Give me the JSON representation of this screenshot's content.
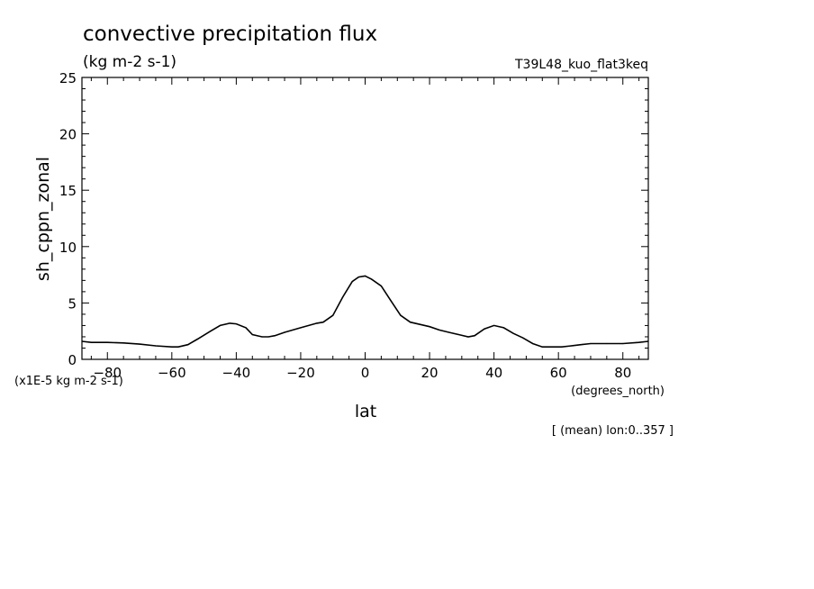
{
  "chart_data": {
    "type": "line",
    "title": "convective precipitation flux",
    "subtitle": "(kg m-2 s-1)",
    "run_label": "T39L48_kuo_flat3keq",
    "xlabel": "lat",
    "ylabel": "sh_cppn_zonal",
    "x_units": "(degrees_north)",
    "y_scale_note": "(x1E-5 kg m-2 s-1)",
    "footnote": "[ (mean) lon:0..357 ]",
    "xlim": [
      -87.9,
      87.9
    ],
    "ylim": [
      0,
      25
    ],
    "x_ticks": [
      -80,
      -60,
      -40,
      -20,
      0,
      20,
      40,
      60,
      80
    ],
    "y_ticks": [
      0,
      5,
      10,
      15,
      20,
      25
    ],
    "grid": false,
    "series": [
      {
        "x": [
          -87.9,
          -85,
          -80,
          -75,
          -70,
          -65,
          -60,
          -58,
          -55,
          -52,
          -48,
          -45,
          -42,
          -40,
          -37,
          -35,
          -32,
          -30,
          -28,
          -25,
          -20,
          -15,
          -13,
          -10,
          -7,
          -4,
          -2,
          0,
          2,
          5,
          8,
          11,
          14,
          17,
          20,
          23,
          26,
          29,
          32,
          34,
          37,
          40,
          43,
          46,
          49,
          52,
          55,
          58,
          61,
          64,
          67,
          70,
          75,
          80,
          85,
          87.9
        ],
        "y": [
          1.6,
          1.5,
          1.5,
          1.45,
          1.35,
          1.2,
          1.1,
          1.1,
          1.3,
          1.8,
          2.5,
          3.0,
          3.2,
          3.15,
          2.8,
          2.2,
          2.0,
          2.0,
          2.1,
          2.4,
          2.8,
          3.2,
          3.3,
          3.9,
          5.5,
          6.9,
          7.3,
          7.4,
          7.1,
          6.5,
          5.2,
          3.9,
          3.3,
          3.1,
          2.9,
          2.6,
          2.4,
          2.2,
          2.0,
          2.1,
          2.7,
          3.0,
          2.8,
          2.3,
          1.9,
          1.4,
          1.1,
          1.1,
          1.1,
          1.2,
          1.3,
          1.4,
          1.4,
          1.4,
          1.5,
          1.6
        ]
      }
    ]
  }
}
